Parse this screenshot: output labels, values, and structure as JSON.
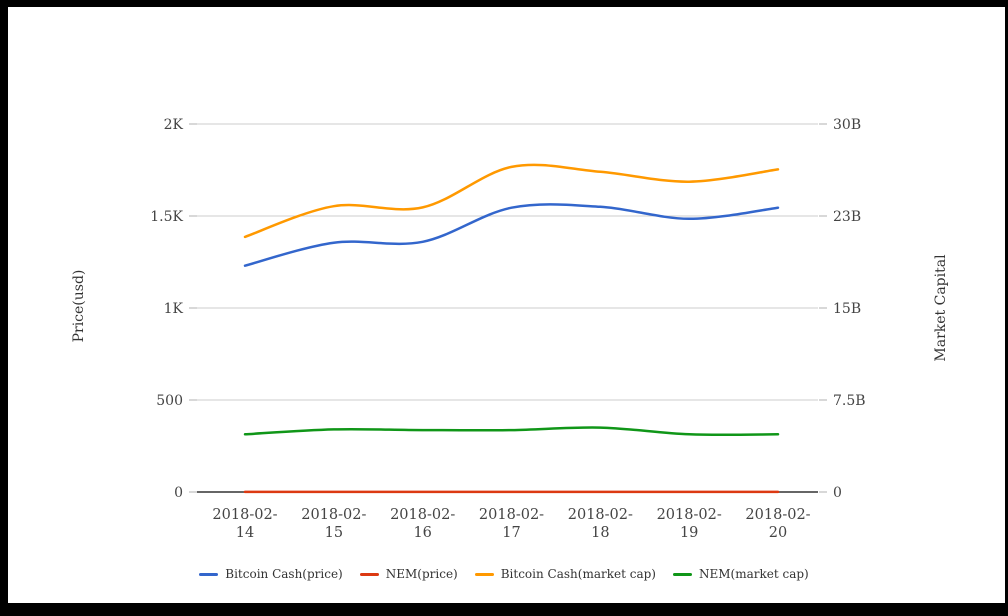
{
  "chart_data": {
    "type": "line",
    "title": "",
    "categories": [
      "2018-02-14",
      "2018-02-15",
      "2018-02-16",
      "2018-02-17",
      "2018-02-18",
      "2018-02-19",
      "2018-02-20"
    ],
    "axes": {
      "left": {
        "title": "Price(usd)",
        "ticks": [
          "0",
          "500",
          "1K",
          "1.5K",
          "2K"
        ],
        "tick_values": [
          0,
          500,
          1000,
          1500,
          2000
        ],
        "range": [
          0,
          2000
        ],
        "unit": "USD"
      },
      "right": {
        "title": "Market Capital",
        "ticks": [
          "0",
          "7.5B",
          "15B",
          "23B",
          "30B"
        ],
        "tick_values": [
          0,
          7.5,
          15,
          22.5,
          30
        ],
        "range": [
          0,
          30
        ],
        "unit": "billions USD"
      }
    },
    "series": [
      {
        "name": "Bitcoin Cash(price)",
        "axis": "left",
        "color": "#3366cc",
        "values": [
          1230,
          1355,
          1360,
          1545,
          1550,
          1485,
          1545
        ]
      },
      {
        "name": "NEM(price)",
        "axis": "left",
        "color": "#dc3912",
        "values": [
          0.6,
          0.63,
          0.59,
          0.61,
          0.6,
          0.55,
          0.56
        ]
      },
      {
        "name": "Bitcoin Cash(market cap)",
        "axis": "right",
        "color": "#ff9900",
        "values": [
          20.8,
          23.3,
          23.2,
          26.5,
          26.1,
          25.3,
          26.3
        ]
      },
      {
        "name": "NEM(market cap)",
        "axis": "right",
        "color": "#109618",
        "values": [
          4.7,
          5.1,
          5.05,
          5.05,
          5.25,
          4.7,
          4.7
        ]
      }
    ],
    "legend_position": "bottom",
    "grid": true,
    "colors": {
      "gridline": "#cccccc",
      "zero_axis": "#333333",
      "tick_mark": "#b0b0b0",
      "tick_text": "#444444",
      "frame": "#000000"
    }
  }
}
